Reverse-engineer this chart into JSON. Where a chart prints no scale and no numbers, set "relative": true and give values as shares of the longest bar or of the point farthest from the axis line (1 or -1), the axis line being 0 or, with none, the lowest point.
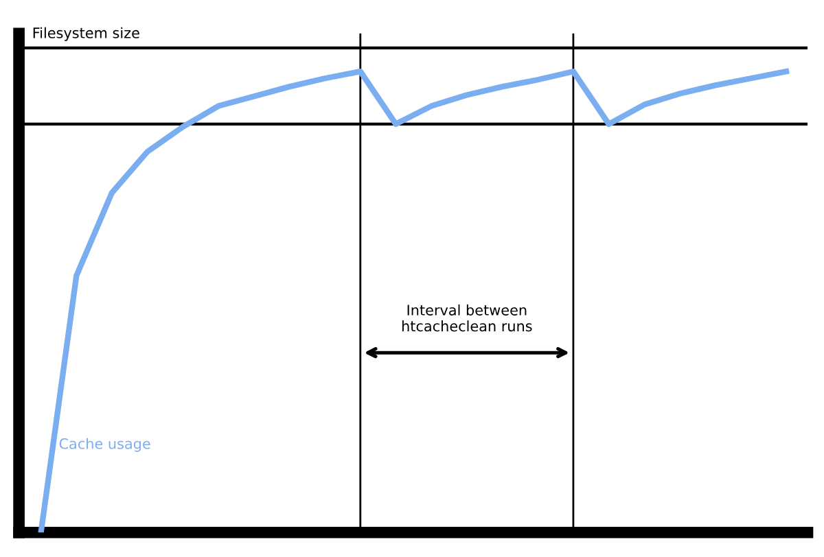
{
  "chart_data": {
    "type": "line",
    "relative": true,
    "categories": [
      null,
      null,
      null,
      null,
      null,
      null,
      null,
      null,
      null,
      null,
      null,
      null,
      null,
      null,
      null,
      null,
      null,
      null,
      null,
      null,
      null,
      null
    ],
    "series": [
      {
        "name": "Cache usage",
        "color": "#7aaef0",
        "values": [
          0,
          0.557,
          0.737,
          0.826,
          0.88,
          0.925,
          0.946,
          0.967,
          0.985,
          1,
          0.886,
          0.925,
          0.949,
          0.967,
          0.982,
          1,
          0.886,
          0.928,
          0.952,
          0.97,
          0.985,
          1
        ]
      }
    ],
    "ref_lines": [
      {
        "axis": "y",
        "value": 1.051,
        "label": "Filesystem size",
        "color": "#000000"
      },
      {
        "axis": "y",
        "value": 0.886,
        "color": "#000000"
      }
    ],
    "annotations": [
      "Interval between htcacheclean runs"
    ],
    "grid": false,
    "legend": false,
    "marker": "none",
    "line_style": "solid"
  }
}
